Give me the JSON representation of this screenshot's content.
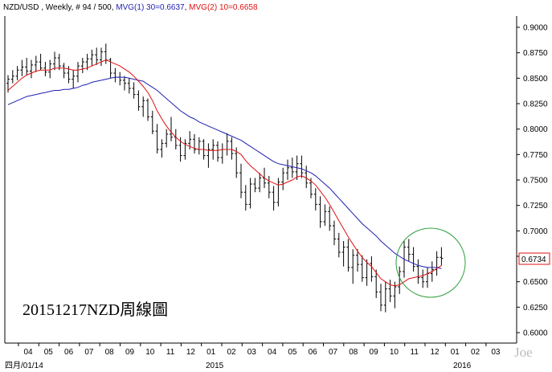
{
  "header": {
    "symbol": "NZD/USD",
    "sep": " , ",
    "period": "Weekly",
    "bars": ", # 94 / 500,",
    "ma1_label": "MVG(1) 30=0.6637",
    "ma2_label": "MVG(2) 10=0.6658"
  },
  "caption": "20151217NZD周線圖",
  "watermark": "Joe",
  "price_tag": "0.6734",
  "colors": {
    "bars": "#000000",
    "ma30": "#1f1fb0",
    "ma10": "#e01010",
    "circle": "#2e9e3a",
    "price_tag_border": "#e01010",
    "grid": "#000000"
  },
  "chart_data": {
    "type": "ohlc",
    "instrument": "NZD/USD",
    "timeframe": "Weekly",
    "ylim": [
      0.6,
      0.9
    ],
    "y_ticks": [
      "0.9000",
      "0.8750",
      "0.8500",
      "0.8250",
      "0.8000",
      "0.7750",
      "0.7500",
      "0.7250",
      "0.7000",
      "0.6750",
      "0.6500",
      "0.6250",
      "0.6000"
    ],
    "x_ticks": [
      "04",
      "05",
      "06",
      "07",
      "08",
      "09",
      "10",
      "11",
      "12",
      "01",
      "02",
      "03",
      "04",
      "05",
      "06",
      "07",
      "08",
      "09",
      "10",
      "11",
      "12",
      "01",
      "02",
      "03"
    ],
    "x_sublabels": {
      "start": "四月/01/14",
      "year_2015": "2015",
      "year_2016": "2016"
    },
    "ohlc": [
      [
        0.845,
        0.853,
        0.836,
        0.849
      ],
      [
        0.849,
        0.858,
        0.845,
        0.852
      ],
      [
        0.852,
        0.862,
        0.848,
        0.858
      ],
      [
        0.858,
        0.868,
        0.852,
        0.861
      ],
      [
        0.861,
        0.87,
        0.853,
        0.857
      ],
      [
        0.857,
        0.868,
        0.85,
        0.863
      ],
      [
        0.863,
        0.872,
        0.856,
        0.866
      ],
      [
        0.866,
        0.874,
        0.858,
        0.86
      ],
      [
        0.86,
        0.866,
        0.852,
        0.856
      ],
      [
        0.856,
        0.868,
        0.85,
        0.864
      ],
      [
        0.864,
        0.876,
        0.858,
        0.87
      ],
      [
        0.87,
        0.874,
        0.858,
        0.862
      ],
      [
        0.862,
        0.865,
        0.85,
        0.855
      ],
      [
        0.855,
        0.862,
        0.845,
        0.849
      ],
      [
        0.849,
        0.858,
        0.84,
        0.852
      ],
      [
        0.852,
        0.866,
        0.846,
        0.862
      ],
      [
        0.862,
        0.87,
        0.855,
        0.866
      ],
      [
        0.866,
        0.874,
        0.858,
        0.869
      ],
      [
        0.869,
        0.878,
        0.862,
        0.873
      ],
      [
        0.873,
        0.88,
        0.863,
        0.868
      ],
      [
        0.868,
        0.88,
        0.862,
        0.876
      ],
      [
        0.876,
        0.884,
        0.864,
        0.868
      ],
      [
        0.868,
        0.87,
        0.85,
        0.855
      ],
      [
        0.855,
        0.86,
        0.846,
        0.851
      ],
      [
        0.851,
        0.856,
        0.843,
        0.848
      ],
      [
        0.848,
        0.852,
        0.838,
        0.845
      ],
      [
        0.845,
        0.85,
        0.835,
        0.84
      ],
      [
        0.84,
        0.846,
        0.83,
        0.834
      ],
      [
        0.834,
        0.838,
        0.818,
        0.822
      ],
      [
        0.822,
        0.832,
        0.812,
        0.828
      ],
      [
        0.828,
        0.83,
        0.808,
        0.812
      ],
      [
        0.812,
        0.818,
        0.795,
        0.798
      ],
      [
        0.798,
        0.805,
        0.776,
        0.78
      ],
      [
        0.78,
        0.79,
        0.772,
        0.786
      ],
      [
        0.786,
        0.8,
        0.782,
        0.795
      ],
      [
        0.795,
        0.812,
        0.788,
        0.792
      ],
      [
        0.792,
        0.8,
        0.78,
        0.784
      ],
      [
        0.784,
        0.792,
        0.768,
        0.774
      ],
      [
        0.774,
        0.79,
        0.77,
        0.786
      ],
      [
        0.786,
        0.798,
        0.78,
        0.79
      ],
      [
        0.79,
        0.795,
        0.776,
        0.78
      ],
      [
        0.78,
        0.792,
        0.775,
        0.788
      ],
      [
        0.788,
        0.79,
        0.77,
        0.774
      ],
      [
        0.774,
        0.786,
        0.762,
        0.78
      ],
      [
        0.78,
        0.79,
        0.77,
        0.784
      ],
      [
        0.784,
        0.788,
        0.768,
        0.772
      ],
      [
        0.772,
        0.786,
        0.766,
        0.78
      ],
      [
        0.78,
        0.796,
        0.774,
        0.788
      ],
      [
        0.788,
        0.792,
        0.77,
        0.776
      ],
      [
        0.776,
        0.782,
        0.752,
        0.757
      ],
      [
        0.757,
        0.766,
        0.732,
        0.738
      ],
      [
        0.738,
        0.745,
        0.72,
        0.726
      ],
      [
        0.726,
        0.752,
        0.722,
        0.746
      ],
      [
        0.746,
        0.752,
        0.738,
        0.742
      ],
      [
        0.742,
        0.757,
        0.738,
        0.752
      ],
      [
        0.752,
        0.762,
        0.742,
        0.747
      ],
      [
        0.747,
        0.754,
        0.732,
        0.738
      ],
      [
        0.738,
        0.744,
        0.72,
        0.728
      ],
      [
        0.728,
        0.752,
        0.724,
        0.748
      ],
      [
        0.748,
        0.762,
        0.74,
        0.757
      ],
      [
        0.757,
        0.77,
        0.75,
        0.762
      ],
      [
        0.762,
        0.772,
        0.752,
        0.758
      ],
      [
        0.758,
        0.774,
        0.75,
        0.766
      ],
      [
        0.766,
        0.774,
        0.752,
        0.757
      ],
      [
        0.757,
        0.764,
        0.742,
        0.747
      ],
      [
        0.747,
        0.752,
        0.732,
        0.736
      ],
      [
        0.736,
        0.742,
        0.72,
        0.726
      ],
      [
        0.726,
        0.734,
        0.703,
        0.709
      ],
      [
        0.709,
        0.726,
        0.705,
        0.719
      ],
      [
        0.719,
        0.724,
        0.7,
        0.705
      ],
      [
        0.705,
        0.71,
        0.686,
        0.692
      ],
      [
        0.692,
        0.698,
        0.674,
        0.679
      ],
      [
        0.679,
        0.69,
        0.665,
        0.684
      ],
      [
        0.684,
        0.692,
        0.66,
        0.664
      ],
      [
        0.664,
        0.682,
        0.648,
        0.676
      ],
      [
        0.676,
        0.682,
        0.66,
        0.667
      ],
      [
        0.667,
        0.676,
        0.65,
        0.654
      ],
      [
        0.654,
        0.672,
        0.646,
        0.668
      ],
      [
        0.668,
        0.675,
        0.65,
        0.655
      ],
      [
        0.655,
        0.662,
        0.634,
        0.64
      ],
      [
        0.64,
        0.648,
        0.621,
        0.627
      ],
      [
        0.627,
        0.65,
        0.62,
        0.643
      ],
      [
        0.643,
        0.652,
        0.63,
        0.636
      ],
      [
        0.636,
        0.65,
        0.624,
        0.645
      ],
      [
        0.645,
        0.665,
        0.638,
        0.66
      ],
      [
        0.66,
        0.69,
        0.654,
        0.684
      ],
      [
        0.684,
        0.692,
        0.67,
        0.677
      ],
      [
        0.677,
        0.684,
        0.66,
        0.665
      ],
      [
        0.665,
        0.672,
        0.648,
        0.654
      ],
      [
        0.654,
        0.662,
        0.644,
        0.65
      ],
      [
        0.65,
        0.664,
        0.644,
        0.658
      ],
      [
        0.658,
        0.67,
        0.65,
        0.662
      ],
      [
        0.662,
        0.68,
        0.656,
        0.674
      ],
      [
        0.674,
        0.684,
        0.666,
        0.673
      ]
    ],
    "ma30": [
      0.824,
      0.826,
      0.828,
      0.83,
      0.832,
      0.833,
      0.834,
      0.835,
      0.836,
      0.837,
      0.838,
      0.838,
      0.839,
      0.839,
      0.84,
      0.841,
      0.843,
      0.844,
      0.846,
      0.847,
      0.848,
      0.849,
      0.85,
      0.851,
      0.851,
      0.851,
      0.85,
      0.849,
      0.848,
      0.847,
      0.844,
      0.841,
      0.838,
      0.834,
      0.83,
      0.826,
      0.822,
      0.818,
      0.815,
      0.812,
      0.81,
      0.807,
      0.805,
      0.803,
      0.801,
      0.799,
      0.797,
      0.795,
      0.793,
      0.791,
      0.789,
      0.786,
      0.783,
      0.78,
      0.777,
      0.774,
      0.771,
      0.768,
      0.766,
      0.765,
      0.764,
      0.763,
      0.762,
      0.761,
      0.759,
      0.757,
      0.754,
      0.75,
      0.746,
      0.742,
      0.737,
      0.732,
      0.727,
      0.722,
      0.717,
      0.712,
      0.707,
      0.703,
      0.699,
      0.695,
      0.69,
      0.686,
      0.682,
      0.678,
      0.675,
      0.672,
      0.67,
      0.668,
      0.666,
      0.665,
      0.664,
      0.664,
      0.664,
      0.663
    ],
    "ma10": [
      0.838,
      0.842,
      0.846,
      0.85,
      0.853,
      0.855,
      0.857,
      0.858,
      0.858,
      0.858,
      0.86,
      0.86,
      0.86,
      0.859,
      0.858,
      0.858,
      0.859,
      0.86,
      0.862,
      0.864,
      0.866,
      0.868,
      0.866,
      0.864,
      0.862,
      0.859,
      0.856,
      0.852,
      0.847,
      0.842,
      0.836,
      0.828,
      0.818,
      0.81,
      0.803,
      0.797,
      0.792,
      0.788,
      0.785,
      0.783,
      0.781,
      0.78,
      0.78,
      0.779,
      0.779,
      0.779,
      0.78,
      0.78,
      0.78,
      0.778,
      0.775,
      0.769,
      0.764,
      0.76,
      0.756,
      0.752,
      0.749,
      0.747,
      0.745,
      0.746,
      0.748,
      0.75,
      0.753,
      0.754,
      0.752,
      0.749,
      0.745,
      0.739,
      0.733,
      0.726,
      0.718,
      0.71,
      0.702,
      0.694,
      0.687,
      0.68,
      0.674,
      0.669,
      0.665,
      0.659,
      0.653,
      0.65,
      0.647,
      0.646,
      0.647,
      0.65,
      0.653,
      0.654,
      0.655,
      0.656,
      0.658,
      0.66,
      0.663,
      0.666
    ]
  }
}
